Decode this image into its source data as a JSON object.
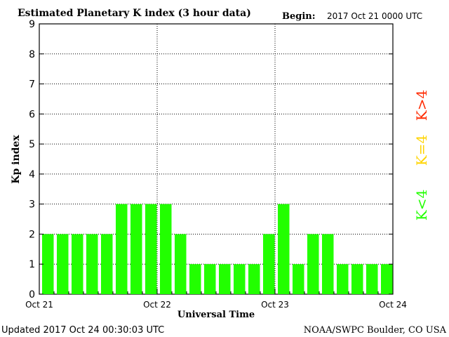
{
  "chart_data": {
    "type": "bar",
    "title": "Estimated Planetary K index (3 hour data)",
    "begin_label": "Begin:",
    "begin_value": "2017 Oct 21 0000 UTC",
    "xlabel": "Universal Time",
    "ylabel": "Kp index",
    "ylim": [
      0,
      9
    ],
    "yticks": [
      "0",
      "1",
      "2",
      "3",
      "4",
      "5",
      "6",
      "7",
      "8",
      "9"
    ],
    "xticks": [
      "Oct 21",
      "Oct 22",
      "Oct 23",
      "Oct 24"
    ],
    "bar_interval_hours": 3,
    "values": [
      2,
      2,
      2,
      2,
      2,
      3,
      3,
      3,
      3,
      2,
      1,
      1,
      1,
      1,
      1,
      2,
      3,
      1,
      2,
      2,
      1,
      1,
      1,
      1
    ],
    "bar_color": "#22ff00",
    "grid": true,
    "legend": [
      {
        "label": "K>4",
        "color": "#ff2a00"
      },
      {
        "label": "K=4",
        "color": "#ffd400"
      },
      {
        "label": "K<4",
        "color": "#22ff00"
      }
    ]
  },
  "footer": {
    "updated": "Updated 2017 Oct 24 00:30:03 UTC",
    "source": "NOAA/SWPC Boulder, CO USA"
  }
}
